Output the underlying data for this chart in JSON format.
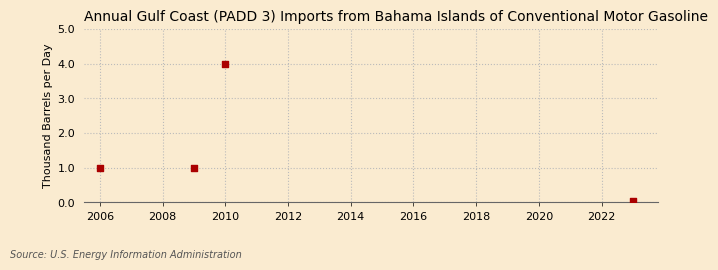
{
  "title": "Annual Gulf Coast (PADD 3) Imports from Bahama Islands of Conventional Motor Gasoline",
  "ylabel": "Thousand Barrels per Day",
  "source": "Source: U.S. Energy Information Administration",
  "background_color": "#faebd0",
  "plot_background_color": "#faebd0",
  "data_points": [
    {
      "year": 2006,
      "value": 1.0
    },
    {
      "year": 2009,
      "value": 1.0
    },
    {
      "year": 2010,
      "value": 4.0
    },
    {
      "year": 2023,
      "value": 0.03
    }
  ],
  "marker_color": "#aa0000",
  "marker_size": 4,
  "xlim": [
    2005.5,
    2023.8
  ],
  "ylim": [
    0.0,
    5.0
  ],
  "xticks": [
    2006,
    2008,
    2010,
    2012,
    2014,
    2016,
    2018,
    2020,
    2022
  ],
  "yticks": [
    0.0,
    1.0,
    2.0,
    3.0,
    4.0,
    5.0
  ],
  "grid_color": "#bbbbbb",
  "title_fontsize": 10,
  "axis_label_fontsize": 8,
  "tick_fontsize": 8,
  "source_fontsize": 7
}
